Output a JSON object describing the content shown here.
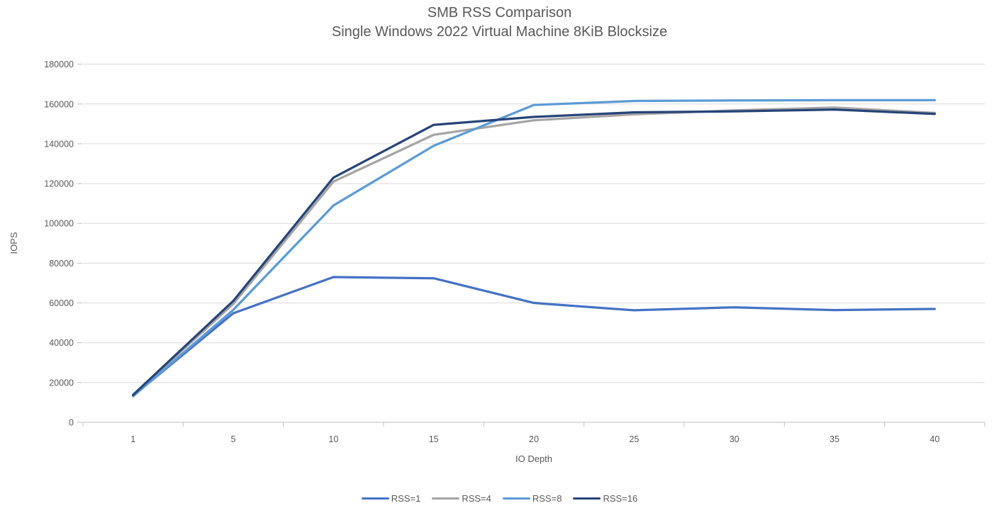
{
  "chart_data": {
    "type": "line",
    "title": "SMB RSS Comparison",
    "subtitle": "Single Windows 2022 Virtual Machine 8KiB Blocksize",
    "xlabel": "IO Depth",
    "ylabel": "IOPS",
    "categories": [
      1,
      5,
      10,
      15,
      20,
      25,
      30,
      35,
      40
    ],
    "ylim": [
      0,
      180000
    ],
    "ytick_step": 20000,
    "grid": true,
    "legend_position": "bottom",
    "colors": {
      "grid": "#D9D9D9",
      "axis": "#BFBFBF",
      "text": "#595959"
    },
    "series": [
      {
        "name": "RSS=1",
        "color": "#4472C4",
        "values": [
          13300,
          54800,
          73000,
          72400,
          60000,
          56300,
          57800,
          56400,
          57000
        ]
      },
      {
        "name": "RSS=4",
        "color": "#A5A5A5",
        "values": [
          13600,
          59500,
          121000,
          144500,
          151800,
          154800,
          156800,
          158200,
          155500
        ]
      },
      {
        "name": "RSS=8",
        "color": "#5B9BD5",
        "values": [
          13100,
          56500,
          109000,
          139000,
          159500,
          161500,
          161800,
          161900,
          161900
        ]
      },
      {
        "name": "RSS=16",
        "color": "#264478",
        "values": [
          13800,
          61000,
          123000,
          149500,
          153500,
          155800,
          156300,
          157200,
          155000
        ]
      }
    ]
  }
}
